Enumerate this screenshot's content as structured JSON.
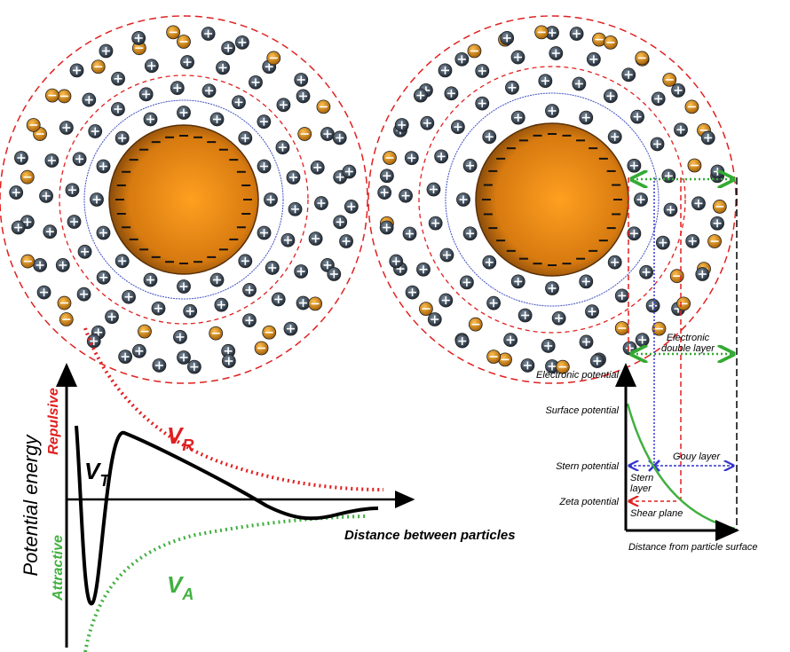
{
  "left_graph": {
    "y_axis_label": "Potential energy",
    "repulsive": "Repulsive",
    "attractive": "Attractive",
    "x_axis_label": "Distance between particles",
    "curves": [
      {
        "symbol": "V",
        "subscript": "R"
      },
      {
        "symbol": "V",
        "subscript": "T"
      },
      {
        "symbol": "V",
        "subscript": "A"
      }
    ]
  },
  "right_graph": {
    "labels": [
      "Electronic potential",
      "Surface potential",
      "Stern potential",
      "Zeta potential"
    ],
    "double_layer": "Electronic double layer",
    "gouy_layer": "Gouy layer",
    "stern_layer": "Stern layer",
    "shear_plane": "Shear plane",
    "x_axis_label": "Distance from particle surface"
  }
}
